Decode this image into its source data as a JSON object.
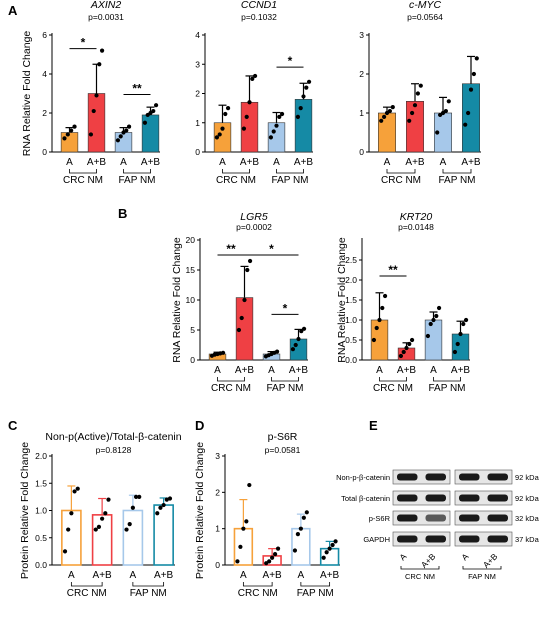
{
  "panel_labels": [
    "A",
    "B",
    "C",
    "D",
    "E"
  ],
  "chart_data": [
    {
      "panel": "A",
      "type": "bar",
      "title": "AXIN2",
      "title_italic": true,
      "pvalue": "p=0.0031",
      "ylabel": "RNA Relative Fold Change",
      "ylim": [
        0,
        6
      ],
      "yticks": [
        "0",
        "2",
        "4",
        "6"
      ],
      "categories": [
        "A",
        "A+B",
        "A",
        "A+B"
      ],
      "groups": [
        "CRC NM",
        "FAP NM"
      ],
      "values": [
        1.0,
        3.0,
        1.0,
        1.9
      ],
      "errors": [
        0.25,
        1.5,
        0.25,
        0.4
      ],
      "points": [
        [
          0.7,
          0.9,
          1.1,
          1.3
        ],
        [
          0.9,
          2.1,
          2.9,
          4.5,
          5.2
        ],
        [
          0.6,
          0.8,
          1.0,
          1.1,
          1.3
        ],
        [
          1.5,
          1.9,
          2.0,
          2.1,
          2.4
        ]
      ],
      "colors": [
        "#f6a13a",
        "#ef4044",
        "#a6c8ea",
        "#158aa5"
      ],
      "significance": [
        {
          "from": 0,
          "to": 1,
          "label": "*",
          "level": 5.3
        },
        {
          "from": 2,
          "to": 3,
          "label": "**",
          "level": 2.95
        }
      ]
    },
    {
      "panel": "A",
      "type": "bar",
      "title": "CCND1",
      "title_italic": true,
      "pvalue": "p=0.1032",
      "ylabel": "",
      "ylim": [
        0,
        4
      ],
      "yticks": [
        "0",
        "1",
        "2",
        "3",
        "4"
      ],
      "categories": [
        "A",
        "A+B",
        "A",
        "A+B"
      ],
      "groups": [
        "CRC NM",
        "FAP NM"
      ],
      "values": [
        1.0,
        1.7,
        1.0,
        1.8
      ],
      "errors": [
        0.6,
        0.9,
        0.35,
        0.55
      ],
      "points": [
        [
          0.5,
          0.6,
          0.8,
          1.3,
          1.5
        ],
        [
          0.8,
          1.2,
          1.7,
          2.5,
          2.6
        ],
        [
          0.5,
          0.7,
          0.9,
          1.2,
          1.3
        ],
        [
          1.2,
          1.5,
          1.9,
          2.2,
          2.4
        ]
      ],
      "colors": [
        "#f6a13a",
        "#ef4044",
        "#a6c8ea",
        "#158aa5"
      ],
      "significance": [
        {
          "from": 2,
          "to": 3,
          "label": "*",
          "level": 2.9
        }
      ]
    },
    {
      "panel": "A",
      "type": "bar",
      "title": "c-MYC",
      "title_italic": true,
      "pvalue": "p=0.0564",
      "ylabel": "",
      "ylim": [
        0,
        3
      ],
      "yticks": [
        "0",
        "1",
        "2",
        "3"
      ],
      "categories": [
        "A",
        "A+B",
        "A",
        "A+B"
      ],
      "groups": [
        "CRC NM",
        "FAP NM"
      ],
      "values": [
        1.0,
        1.3,
        1.0,
        1.75
      ],
      "errors": [
        0.15,
        0.45,
        0.4,
        0.7
      ],
      "points": [
        [
          0.8,
          0.9,
          1.0,
          1.05,
          1.15
        ],
        [
          0.8,
          1.0,
          1.2,
          1.5,
          1.7
        ],
        [
          0.5,
          0.95,
          1.0,
          1.05,
          1.3
        ],
        [
          0.7,
          1.0,
          1.6,
          2.0,
          2.4
        ]
      ],
      "colors": [
        "#f6a13a",
        "#ef4044",
        "#a6c8ea",
        "#158aa5"
      ],
      "significance": []
    },
    {
      "panel": "B",
      "type": "bar",
      "title": "LGR5",
      "title_italic": true,
      "pvalue": "p=0.0002",
      "ylabel": "RNA Relative Fold Change",
      "ylim": [
        0,
        20
      ],
      "yticks": [
        "0",
        "5",
        "10",
        "15",
        "20"
      ],
      "categories": [
        "A",
        "A+B",
        "A",
        "A+B"
      ],
      "groups": [
        "CRC NM",
        "FAP NM"
      ],
      "values": [
        1.0,
        10.4,
        1.0,
        3.5
      ],
      "errors": [
        0.3,
        5.2,
        0.4,
        1.6
      ],
      "points": [
        [
          0.7,
          0.9,
          1.0,
          1.1,
          1.2
        ],
        [
          5.0,
          7.0,
          10.0,
          15.0,
          16.5
        ],
        [
          0.6,
          0.8,
          1.0,
          1.2,
          1.4
        ],
        [
          1.8,
          2.5,
          3.5,
          4.8,
          5.2
        ]
      ],
      "colors": [
        "#f6a13a",
        "#ef4044",
        "#a6c8ea",
        "#158aa5"
      ],
      "significance": [
        {
          "from": 0,
          "to": 1,
          "label": "**",
          "level": 17.5
        },
        {
          "from": 1,
          "to": 3,
          "label": "*",
          "level": 17.5
        },
        {
          "from": 2,
          "to": 3,
          "label": "*",
          "level": 7.6
        }
      ]
    },
    {
      "panel": "B",
      "type": "bar",
      "title": "KRT20",
      "title_italic": true,
      "pvalue": "p=0.0148",
      "ylabel": "RNA Relative Fold Change",
      "ylim": [
        0,
        3
      ],
      "yticks": [
        "0.0",
        "0.5",
        "1.0",
        "1.5",
        "2.0",
        "2.5"
      ],
      "categories": [
        "A",
        "A+B",
        "A",
        "A+B"
      ],
      "groups": [
        "CRC NM",
        "FAP NM"
      ],
      "values": [
        1.0,
        0.3,
        1.0,
        0.65
      ],
      "errors": [
        0.68,
        0.13,
        0.2,
        0.32
      ],
      "points": [
        [
          0.5,
          0.8,
          1.0,
          1.3,
          1.6
        ],
        [
          0.1,
          0.2,
          0.3,
          0.4,
          0.5
        ],
        [
          0.6,
          0.9,
          1.0,
          1.1,
          1.3
        ],
        [
          0.2,
          0.4,
          0.65,
          0.9,
          1.0
        ]
      ],
      "colors": [
        "#f6a13a",
        "#ef4044",
        "#a6c8ea",
        "#158aa5"
      ],
      "significance": [
        {
          "from": 0,
          "to": 1,
          "label": "**",
          "level": 2.1
        }
      ]
    },
    {
      "panel": "C",
      "type": "bar",
      "title": "Non-p(Active)/Total-β-catenin",
      "title_italic": false,
      "pvalue": "p=0.8128",
      "ylabel": "Protein Relative Fold Change",
      "ylim": [
        0,
        2
      ],
      "yticks": [
        "0.0",
        "0.5",
        "1.0",
        "1.5",
        "2.0"
      ],
      "categories": [
        "A",
        "A+B",
        "A",
        "A+B"
      ],
      "groups": [
        "CRC NM",
        "FAP NM"
      ],
      "style": "outline",
      "values": [
        1.0,
        0.92,
        1.0,
        1.1
      ],
      "errors": [
        0.45,
        0.3,
        0.28,
        0.13
      ],
      "points": [
        [
          0.25,
          0.65,
          0.95,
          1.35,
          1.4
        ],
        [
          0.65,
          0.7,
          0.85,
          0.95,
          1.2
        ],
        [
          0.65,
          0.75,
          1.05,
          1.25,
          1.25
        ],
        [
          0.95,
          1.05,
          1.1,
          1.2,
          1.22
        ]
      ],
      "colors": [
        "#f6a13a",
        "#ef4044",
        "#a6c8ea",
        "#158aa5"
      ],
      "significance": []
    },
    {
      "panel": "D",
      "type": "bar",
      "title": "p-S6R",
      "title_italic": false,
      "pvalue": "p=0.0581",
      "ylabel": "Protein Relative Fold Change",
      "ylim": [
        0,
        3
      ],
      "yticks": [
        "0",
        "1",
        "2",
        "3"
      ],
      "categories": [
        "A",
        "A+B",
        "A",
        "A+B"
      ],
      "groups": [
        "CRC NM",
        "FAP NM"
      ],
      "style": "outline",
      "values": [
        1.0,
        0.25,
        1.0,
        0.45
      ],
      "errors": [
        0.8,
        0.2,
        0.4,
        0.2
      ],
      "points": [
        [
          0.1,
          0.5,
          1.0,
          1.2,
          2.2
        ],
        [
          0.05,
          0.1,
          0.2,
          0.3,
          0.45
        ],
        [
          0.4,
          0.85,
          1.0,
          1.3,
          1.45
        ],
        [
          0.2,
          0.35,
          0.45,
          0.55,
          0.65
        ]
      ],
      "colors": [
        "#f6a13a",
        "#ef4044",
        "#a6c8ea",
        "#158aa5"
      ],
      "significance": []
    }
  ],
  "western_blot": {
    "rows": [
      {
        "label": "Non-p-β-catenin",
        "kda": "92 kDa"
      },
      {
        "label": "Total β-catenin",
        "kda": "92 kDa"
      },
      {
        "label": "p-S6R",
        "kda": "32 kDa"
      },
      {
        "label": "GAPDH",
        "kda": "37 kDa"
      }
    ],
    "lanes": [
      "A",
      "A+B",
      "A",
      "A+B"
    ],
    "groups": [
      "CRC NM",
      "FAP NM"
    ]
  }
}
